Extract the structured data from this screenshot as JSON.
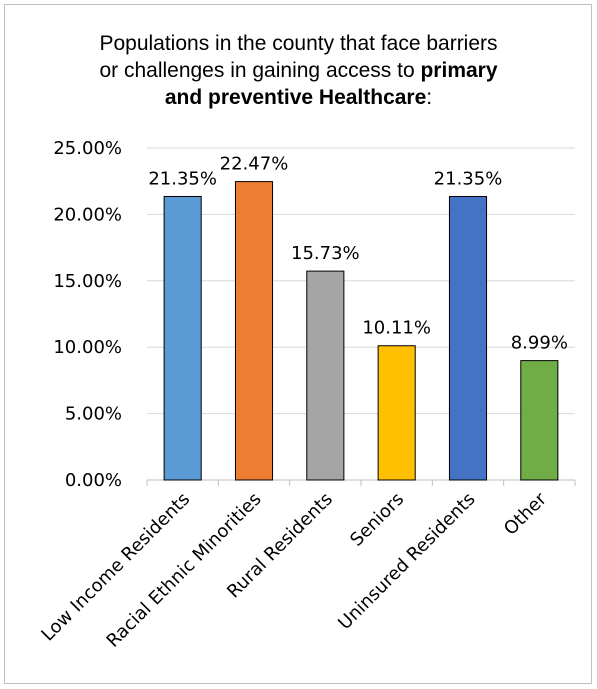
{
  "chart_data": {
    "type": "bar",
    "title_lines": [
      {
        "plain": "Populations in the county that face barriers",
        "bold": "",
        "suffix": ""
      },
      {
        "plain": "or challenges in gaining access to ",
        "bold": "primary",
        "suffix": ""
      },
      {
        "plain": "",
        "bold": "and preventive Healthcare",
        "suffix": ":"
      }
    ],
    "categories": [
      "Low Income Residents",
      "Racial Ethnic Minorities",
      "Rural Residents",
      "Seniors",
      "Uninsured Residents",
      "Other"
    ],
    "values": [
      21.35,
      22.47,
      15.73,
      10.11,
      21.35,
      8.99
    ],
    "data_labels": [
      "21.35%",
      "22.47%",
      "15.73%",
      "10.11%",
      "21.35%",
      "8.99%"
    ],
    "colors": [
      "#5b9bd5",
      "#ed7d31",
      "#a5a5a5",
      "#ffc000",
      "#4472c4",
      "#70ad47"
    ],
    "ylim": [
      0,
      25
    ],
    "yticks": [
      0,
      5,
      10,
      15,
      20,
      25
    ],
    "ytick_labels": [
      "0.00%",
      "5.00%",
      "10.00%",
      "15.00%",
      "20.00%",
      "25.00%"
    ],
    "grid": true,
    "legend": "none"
  }
}
